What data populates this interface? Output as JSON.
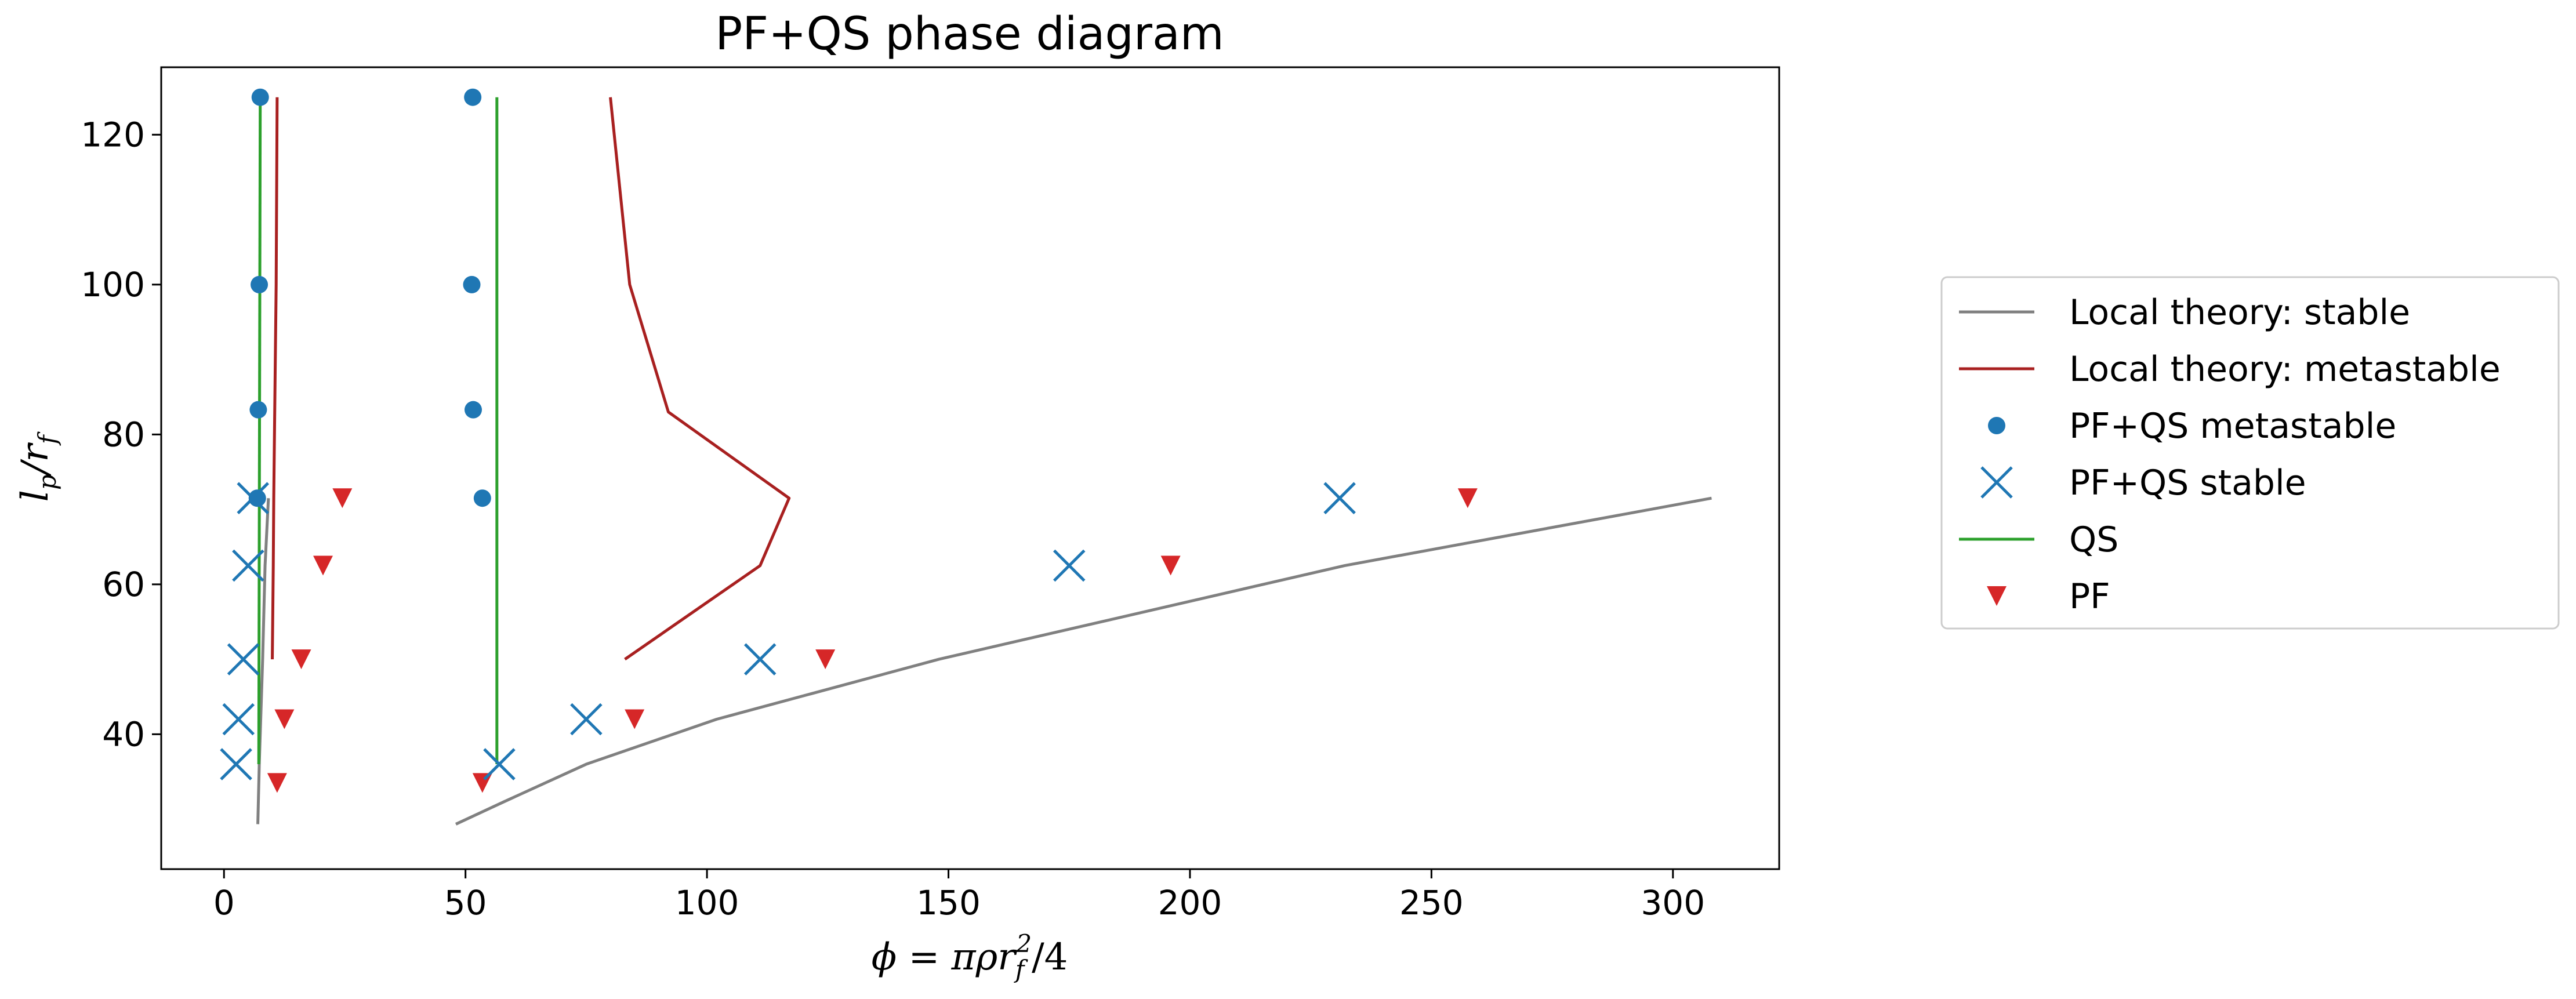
{
  "chart_data": {
    "type": "line",
    "title": "PF+QS phase diagram",
    "xlabel": "ϕ = πρr_f²/4",
    "ylabel": "l_p/r_f",
    "xlim": [
      -13,
      322
    ],
    "ylim": [
      22,
      129
    ],
    "xticks": [
      0,
      50,
      100,
      150,
      200,
      250,
      300
    ],
    "yticks": [
      40,
      60,
      80,
      100,
      120
    ],
    "grid": false,
    "legend_position": "right-outside",
    "series": [
      {
        "name": "Local theory: stable",
        "kind": "line",
        "color": "#808080",
        "groups": [
          {
            "x": [
              7,
              7.3,
              7.6,
              8,
              8.5,
              9.2
            ],
            "y": [
              28,
              36,
              42,
              50,
              62.5,
              71.5
            ]
          },
          {
            "x": [
              48,
              58,
              75,
              102,
              148,
              232,
              308
            ],
            "y": [
              28,
              31,
              36,
              42,
              50,
              62.5,
              71.5
            ]
          }
        ]
      },
      {
        "name": "Local theory: metastable",
        "kind": "line",
        "color": "#a82020",
        "groups": [
          {
            "x": [
              10,
              10.2,
              10.3,
              10.5,
              10.8,
              11
            ],
            "y": [
              50,
              62.5,
              71.5,
              83,
              100,
              125
            ]
          },
          {
            "x": [
              83,
              111,
              117,
              92,
              84,
              80
            ],
            "y": [
              50,
              62.5,
              71.5,
              83,
              100,
              125
            ]
          }
        ]
      },
      {
        "name": "PF+QS metastable",
        "kind": "marker-circle",
        "color": "#1f77b4",
        "x": [
          7.5,
          7.3,
          7.1,
          6.9,
          51.5,
          51.3,
          51.6,
          53.5
        ],
        "y": [
          125,
          100,
          83.3,
          71.5,
          125,
          100,
          83.3,
          71.5
        ]
      },
      {
        "name": "PF+QS stable",
        "kind": "marker-x",
        "color": "#1f77b4",
        "x": [
          2.5,
          3,
          4,
          5,
          6,
          57,
          75,
          111,
          175,
          231
        ],
        "y": [
          36,
          42,
          50,
          62.5,
          71.5,
          36,
          42,
          50,
          62.5,
          71.5
        ]
      },
      {
        "name": "QS",
        "kind": "line",
        "color": "#2ca02c",
        "groups": [
          {
            "x": [
              7.2,
              7.5
            ],
            "y": [
              36,
              125
            ]
          },
          {
            "x": [
              56.5,
              56.5
            ],
            "y": [
              36,
              125
            ]
          }
        ]
      },
      {
        "name": "PF",
        "kind": "marker-triangle",
        "color": "#d62728",
        "x": [
          11,
          12.5,
          16,
          20.5,
          24.5,
          53.5,
          85,
          124.5,
          196,
          257.5
        ],
        "y": [
          33.5,
          42,
          50,
          62.5,
          71.5,
          33.5,
          42,
          50,
          62.5,
          71.5
        ]
      }
    ]
  }
}
